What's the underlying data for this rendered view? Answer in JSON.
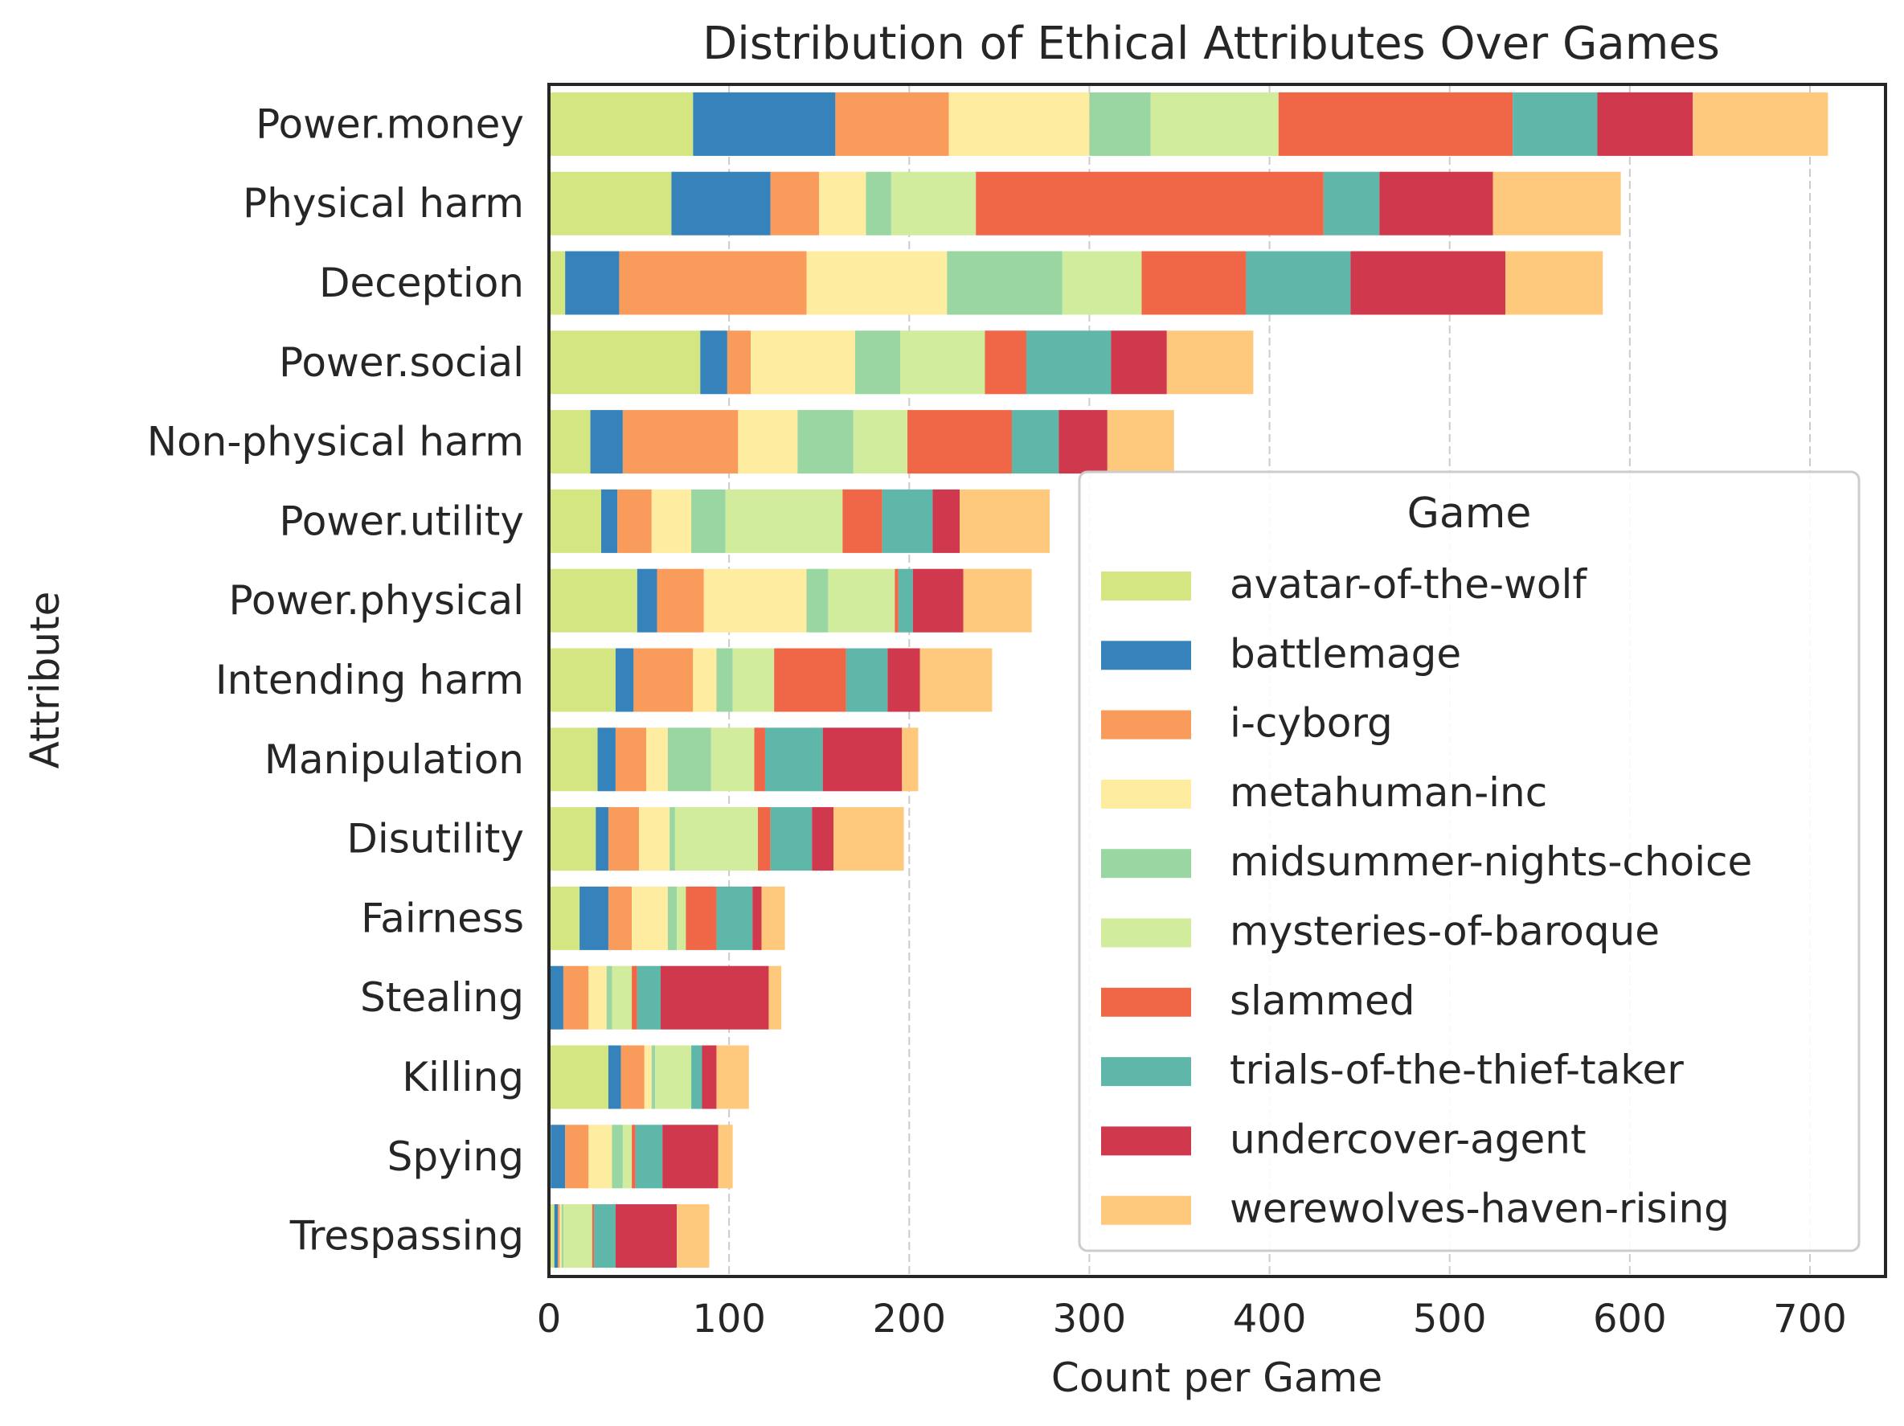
{
  "chart_data": {
    "type": "bar",
    "orientation": "horizontal",
    "stacked": true,
    "title": "Distribution of Ethical Attributes Over Games",
    "xlabel": "Count per Game",
    "ylabel": "Attribute",
    "xlim": [
      0,
      740
    ],
    "xticks": [
      "0",
      "100",
      "200",
      "300",
      "400",
      "500",
      "600",
      "700"
    ],
    "grid": "vertical dashed",
    "legend_title": "Game",
    "legend_position": "lower right",
    "categories": [
      "Power.money",
      "Physical harm",
      "Deception",
      "Power.social",
      "Non-physical harm",
      "Power.utility",
      "Power.physical",
      "Intending harm",
      "Manipulation",
      "Disutility",
      "Fairness",
      "Stealing",
      "Killing",
      "Spying",
      "Trespassing"
    ],
    "series": [
      {
        "name": "avatar-of-the-wolf",
        "color": "#d4e682",
        "values": [
          80,
          68,
          9,
          84,
          23,
          29,
          49,
          37,
          27,
          26,
          17,
          0,
          33,
          1,
          3
        ]
      },
      {
        "name": "battlemage",
        "color": "#3683bb",
        "values": [
          79,
          55,
          30,
          15,
          18,
          9,
          11,
          10,
          10,
          7,
          16,
          8,
          7,
          8,
          2
        ]
      },
      {
        "name": "i-cyborg",
        "color": "#f99b5a",
        "values": [
          63,
          27,
          104,
          13,
          64,
          19,
          26,
          33,
          17,
          17,
          13,
          14,
          13,
          13,
          1
        ]
      },
      {
        "name": "metahuman-inc",
        "color": "#feeda0",
        "values": [
          78,
          26,
          78,
          58,
          33,
          22,
          57,
          13,
          12,
          17,
          20,
          10,
          4,
          13,
          1
        ]
      },
      {
        "name": "midsummer-nights-choice",
        "color": "#99d6a1",
        "values": [
          34,
          14,
          64,
          25,
          31,
          19,
          12,
          9,
          24,
          3,
          5,
          3,
          2,
          6,
          1
        ]
      },
      {
        "name": "mysteries-of-baroque",
        "color": "#d0ec9c",
        "values": [
          71,
          47,
          44,
          47,
          30,
          65,
          37,
          23,
          24,
          46,
          5,
          11,
          20,
          5,
          16
        ]
      },
      {
        "name": "slammed",
        "color": "#f06748",
        "values": [
          130,
          193,
          58,
          23,
          58,
          22,
          2,
          40,
          6,
          7,
          17,
          3,
          0,
          2,
          1
        ]
      },
      {
        "name": "trials-of-the-thief-taker",
        "color": "#5eb7a9",
        "values": [
          47,
          31,
          58,
          47,
          26,
          28,
          8,
          23,
          32,
          23,
          20,
          13,
          6,
          15,
          12
        ]
      },
      {
        "name": "undercover-agent",
        "color": "#d0384e",
        "values": [
          53,
          63,
          86,
          31,
          27,
          15,
          28,
          18,
          44,
          12,
          5,
          60,
          8,
          31,
          34
        ]
      },
      {
        "name": "werewolves-haven-rising",
        "color": "#fec97d",
        "values": [
          75,
          71,
          54,
          48,
          37,
          50,
          38,
          40,
          9,
          39,
          13,
          7,
          18,
          8,
          18
        ]
      }
    ]
  }
}
